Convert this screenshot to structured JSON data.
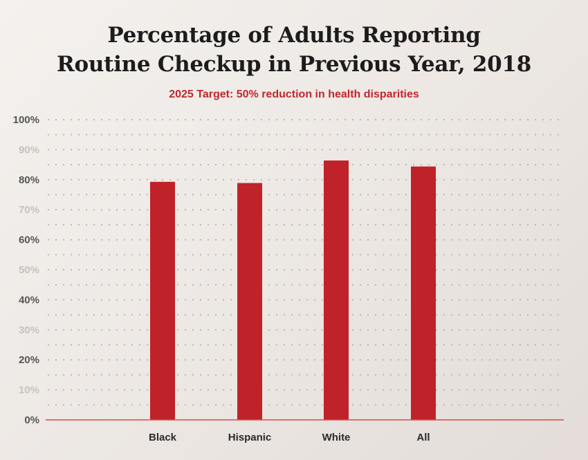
{
  "chart_data": {
    "type": "bar",
    "title": "Percentage of Adults Reporting\nRoutine Checkup in Previous Year, 2018",
    "subtitle": "2025 Target: 50% reduction in health disparities",
    "categories": [
      "Black",
      "Hispanic",
      "White",
      "All"
    ],
    "values": [
      79.3,
      78.9,
      86.4,
      84.4
    ],
    "ylim": [
      0,
      100
    ],
    "yticks": [
      "0%",
      "10%",
      "20%",
      "30%",
      "40%",
      "50%",
      "60%",
      "70%",
      "80%",
      "90%",
      "100%"
    ],
    "grid": true,
    "legend": "none"
  },
  "colors": {
    "bar": "#c0222a",
    "title": "#1c1c1c",
    "subtitle": "#c0272d",
    "axis": "#d44c4c",
    "grid_dots": "#b9b3ae",
    "tick_major": "#555555",
    "tick_minor": "#c7c1bc"
  }
}
